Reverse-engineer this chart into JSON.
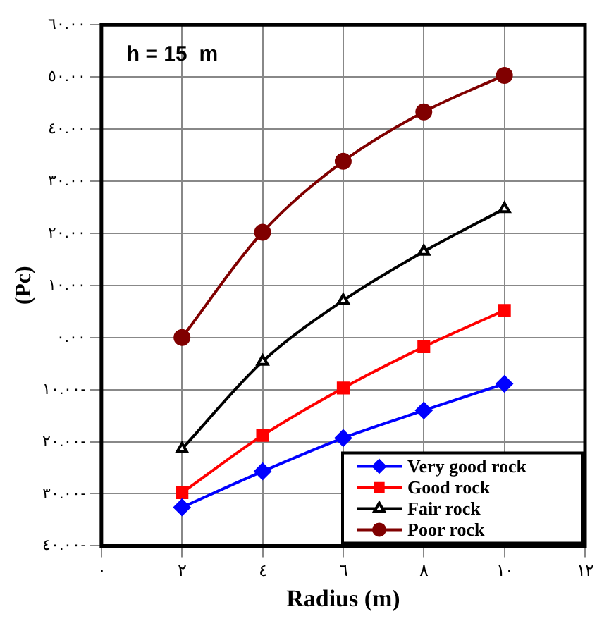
{
  "chart_data": {
    "type": "line",
    "ylabel": "(Pc)",
    "xlabel": "Radius (m)",
    "annotations": [
      "h = 15  m"
    ],
    "xlim": [
      0,
      12
    ],
    "xticks": [
      {
        "value": 0,
        "label": "٠"
      },
      {
        "value": 2,
        "label": "٢"
      },
      {
        "value": 4,
        "label": "٤"
      },
      {
        "value": 6,
        "label": "٦"
      },
      {
        "value": 8,
        "label": "٨"
      },
      {
        "value": 10,
        "label": "١٠"
      },
      {
        "value": 12,
        "label": "١٢"
      }
    ],
    "ylim": [
      -40,
      60
    ],
    "yticks": [
      {
        "value": -40,
        "label": "٤٠.٠٠-"
      },
      {
        "value": -30,
        "label": "٣٠.٠٠-"
      },
      {
        "value": -20,
        "label": "٢٠.٠٠-"
      },
      {
        "value": -10,
        "label": "١٠.٠٠-"
      },
      {
        "value": 0,
        "label": "٠.٠٠"
      },
      {
        "value": 10,
        "label": "١٠.٠٠"
      },
      {
        "value": 20,
        "label": "٢٠.٠٠"
      },
      {
        "value": 30,
        "label": "٣٠.٠٠"
      },
      {
        "value": 40,
        "label": "٤٠.٠٠"
      },
      {
        "value": 50,
        "label": "٥٠.٠٠"
      },
      {
        "value": 60,
        "label": "٦٠.٠٠"
      }
    ],
    "x": [
      2,
      4,
      6,
      8,
      10
    ],
    "grid": true,
    "legend": "bottom right",
    "series": [
      {
        "name": "Very good rock",
        "color": "#0000ff",
        "marker": "diamond",
        "values": [
          -32.6,
          -25.7,
          -19.3,
          -14,
          -8.9
        ]
      },
      {
        "name": "Good rock",
        "color": "#ff0000",
        "marker": "square",
        "values": [
          -29.8,
          -18.8,
          -9.7,
          -1.8,
          5.2
        ]
      },
      {
        "name": "Fair rock",
        "color": "#000000",
        "marker": "triangle",
        "values": [
          -21.4,
          -4.6,
          7.1,
          16.5,
          24.7
        ]
      },
      {
        "name": "Poor rock",
        "color": "#800000",
        "marker": "circle",
        "values": [
          0,
          20.2,
          33.8,
          43.3,
          50.3
        ]
      }
    ]
  }
}
